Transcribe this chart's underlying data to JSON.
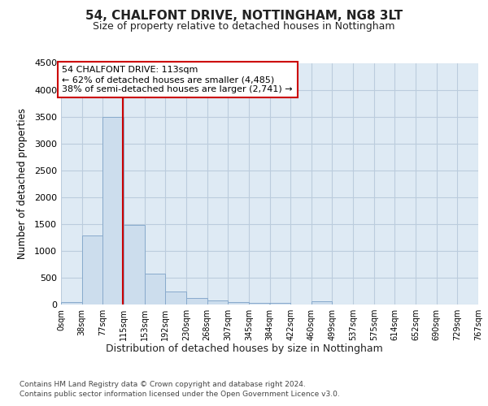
{
  "title": "54, CHALFONT DRIVE, NOTTINGHAM, NG8 3LT",
  "subtitle": "Size of property relative to detached houses in Nottingham",
  "xlabel": "Distribution of detached houses by size in Nottingham",
  "ylabel": "Number of detached properties",
  "bin_labels": [
    "0sqm",
    "38sqm",
    "77sqm",
    "115sqm",
    "153sqm",
    "192sqm",
    "230sqm",
    "268sqm",
    "307sqm",
    "345sqm",
    "384sqm",
    "422sqm",
    "460sqm",
    "499sqm",
    "537sqm",
    "575sqm",
    "614sqm",
    "652sqm",
    "690sqm",
    "729sqm",
    "767sqm"
  ],
  "bar_values": [
    40,
    1280,
    3500,
    1480,
    570,
    240,
    115,
    80,
    50,
    30,
    35,
    0,
    55,
    0,
    0,
    0,
    0,
    0,
    0,
    0
  ],
  "bar_color": "#ccdded",
  "bar_edge_color": "#88aacc",
  "vline_color": "#cc0000",
  "ylim": [
    0,
    4500
  ],
  "yticks": [
    0,
    500,
    1000,
    1500,
    2000,
    2500,
    3000,
    3500,
    4000,
    4500
  ],
  "annotation_text": "54 CHALFONT DRIVE: 113sqm\n← 62% of detached houses are smaller (4,485)\n38% of semi-detached houses are larger (2,741) →",
  "annotation_box_color": "#ffffff",
  "annotation_box_edge": "#cc0000",
  "fig_bg_color": "#ffffff",
  "plot_bg_color": "#deeaf4",
  "grid_color": "#bbccdd",
  "footer1": "Contains HM Land Registry data © Crown copyright and database right 2024.",
  "footer2": "Contains public sector information licensed under the Open Government Licence v3.0.",
  "bin_width": 38,
  "property_sqm": 113
}
